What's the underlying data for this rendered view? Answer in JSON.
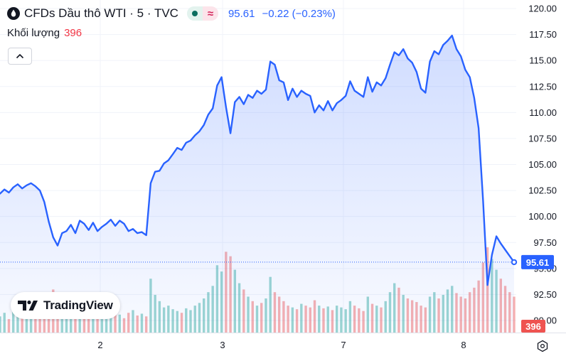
{
  "header": {
    "title": "CFDs Dầu thô WTI · 5 · TVC",
    "price": "95.61",
    "change": "−0.22 (−0.23%)",
    "icons": [
      "oil-drop-icon",
      "market-status-dot-icon",
      "approx-icon"
    ]
  },
  "volume_legend": {
    "label": "Khối lượng",
    "value": "396"
  },
  "collapse_icon": "chevron-up-icon",
  "logo_text": "TradingView",
  "settings_icon": "settings-gear-icon",
  "colors": {
    "line": "#2962ff",
    "up": "#26a69a",
    "down": "#ef5350",
    "price_tag": "#2962ff",
    "volume_tag": "#ef5350"
  },
  "chart_data": {
    "type": "area",
    "title": "CFDs Dầu thô WTI · 5 · TVC",
    "x_ticks": [
      "2",
      "3",
      "7",
      "8"
    ],
    "y_ticks": [
      "120.00",
      "117.50",
      "115.00",
      "112.50",
      "110.00",
      "107.50",
      "105.00",
      "102.50",
      "100.00",
      "97.50",
      "95.00",
      "92.50",
      "90.00"
    ],
    "ylim": [
      90.0,
      120.0
    ],
    "last_price_label": "95.61",
    "volume_label": "396",
    "grid": true,
    "series": [
      {
        "values": [
          102.2,
          102.6,
          102.3,
          102.8,
          103.1,
          102.7,
          103.0,
          103.2,
          102.9,
          102.5,
          101.4,
          99.5,
          98.0,
          97.2,
          98.4,
          98.6,
          99.2,
          98.4,
          99.6,
          99.3,
          98.7,
          99.4,
          98.6,
          99.0,
          99.3,
          99.7,
          99.1,
          99.6,
          99.3,
          98.6,
          98.8,
          98.4,
          98.5,
          98.2,
          103.2,
          104.3,
          104.4,
          105.1,
          105.4,
          106.0,
          106.6,
          106.4,
          107.1,
          107.3,
          107.8,
          108.2,
          108.8,
          109.8,
          110.4,
          112.6,
          113.4,
          110.5,
          108.0,
          111.0,
          111.5,
          110.8,
          111.7,
          111.4,
          112.1,
          111.8,
          112.2,
          114.9,
          114.6,
          113.1,
          112.9,
          111.2,
          112.3,
          111.5,
          112.1,
          111.8,
          111.6,
          110.0,
          110.7,
          110.2,
          111.1,
          110.2,
          110.9,
          111.2,
          111.6,
          113.0,
          112.1,
          111.8,
          111.5,
          113.4,
          112.0,
          112.9,
          112.6,
          113.3,
          114.6,
          115.8,
          115.5,
          116.1,
          115.2,
          114.8,
          113.9,
          112.3,
          111.9,
          114.9,
          115.9,
          115.6,
          116.5,
          116.9,
          117.4,
          116.1,
          115.4,
          114.1,
          113.4,
          111.4,
          108.5,
          101.5,
          93.4,
          96.3,
          98.1,
          97.4,
          96.8,
          96.2,
          95.61
        ],
        "color": "#2962ff"
      }
    ],
    "volume": [
      18,
      22,
      15,
      30,
      25,
      20,
      28,
      35,
      22,
      18,
      26,
      40,
      48,
      30,
      25,
      20,
      33,
      28,
      22,
      19,
      24,
      30,
      26,
      21,
      18,
      23,
      27,
      20,
      16,
      22,
      25,
      19,
      21,
      18,
      60,
      42,
      35,
      28,
      30,
      26,
      24,
      22,
      27,
      25,
      30,
      33,
      38,
      45,
      52,
      75,
      68,
      90,
      85,
      70,
      55,
      48,
      40,
      35,
      30,
      33,
      38,
      62,
      45,
      40,
      35,
      30,
      28,
      26,
      32,
      30,
      28,
      36,
      30,
      27,
      29,
      25,
      30,
      28,
      26,
      35,
      30,
      27,
      24,
      40,
      32,
      30,
      28,
      35,
      45,
      55,
      50,
      42,
      38,
      36,
      34,
      30,
      28,
      40,
      45,
      38,
      42,
      48,
      52,
      44,
      40,
      38,
      45,
      50,
      58,
      78,
      95,
      82,
      70,
      60,
      52,
      45,
      40
    ]
  }
}
